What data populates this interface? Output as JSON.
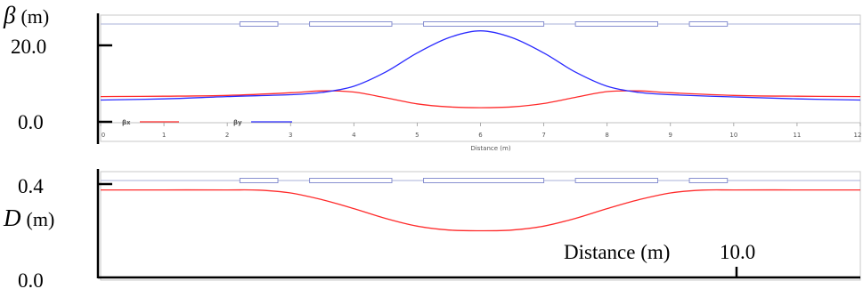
{
  "chart_data": [
    {
      "type": "line",
      "ylabel": "β (m)",
      "ylabel_symbol": "β",
      "ylabel_unit": "(m)",
      "y_ticks": [
        "20.0",
        "0.0"
      ],
      "xlabel": "Distance (m)",
      "x_ticks": [
        "0",
        "1",
        "2",
        "3",
        "4",
        "5",
        "6",
        "7",
        "8",
        "9",
        "10",
        "11",
        "12"
      ],
      "xlim": [
        0,
        12
      ],
      "ylim": [
        0,
        25
      ],
      "legend_position": "bottom-left",
      "series": [
        {
          "name": "βx",
          "color": "#ff2a2a",
          "x": [
            0,
            1,
            2,
            3,
            3.5,
            4,
            4.5,
            5,
            5.5,
            6,
            6.5,
            7,
            7.5,
            8,
            8.5,
            9,
            10,
            11,
            12
          ],
          "y": [
            6.6,
            6.7,
            6.9,
            7.6,
            8.1,
            7.8,
            6.3,
            4.7,
            3.9,
            3.7,
            3.9,
            4.8,
            6.4,
            7.9,
            8.1,
            7.6,
            6.9,
            6.7,
            6.6
          ]
        },
        {
          "name": "βy",
          "color": "#2a2aff",
          "x": [
            0,
            1,
            2,
            3,
            3.5,
            4,
            4.5,
            5,
            5.5,
            6,
            6.5,
            7,
            7.5,
            8,
            8.5,
            9,
            10,
            11,
            12
          ],
          "y": [
            5.7,
            6.0,
            6.6,
            7.1,
            7.7,
            9.3,
            13.0,
            18.0,
            22.0,
            23.8,
            22.0,
            18.0,
            13.0,
            9.3,
            7.7,
            7.1,
            6.5,
            6.0,
            5.7
          ]
        }
      ],
      "lattice_elements": [
        {
          "start": 2.2,
          "end": 2.8
        },
        {
          "start": 3.3,
          "end": 4.6
        },
        {
          "start": 5.1,
          "end": 7.0
        },
        {
          "start": 7.5,
          "end": 8.8
        },
        {
          "start": 9.3,
          "end": 9.9
        }
      ]
    },
    {
      "type": "line",
      "ylabel": "D (m)",
      "ylabel_symbol": "D",
      "ylabel_unit": "(m)",
      "y_ticks": [
        "0.4",
        "0.0"
      ],
      "xlabel": "Distance (m)",
      "x_tick_label": "10.0",
      "xlim": [
        0,
        12
      ],
      "ylim": [
        0,
        0.45
      ],
      "series": [
        {
          "name": "D",
          "color": "#ff2a2a",
          "x": [
            0,
            1,
            2,
            2.5,
            3,
            3.5,
            4,
            4.5,
            5,
            5.5,
            6,
            6.5,
            7,
            7.5,
            8,
            8.5,
            9,
            9.5,
            10,
            11,
            12
          ],
          "y": [
            0.375,
            0.375,
            0.375,
            0.374,
            0.362,
            0.333,
            0.295,
            0.253,
            0.22,
            0.203,
            0.2,
            0.203,
            0.22,
            0.253,
            0.295,
            0.333,
            0.362,
            0.374,
            0.375,
            0.375,
            0.375
          ]
        }
      ],
      "lattice_elements": [
        {
          "start": 2.2,
          "end": 2.8
        },
        {
          "start": 3.3,
          "end": 4.6
        },
        {
          "start": 5.1,
          "end": 7.0
        },
        {
          "start": 7.5,
          "end": 8.8
        },
        {
          "start": 9.3,
          "end": 9.9
        }
      ]
    }
  ]
}
